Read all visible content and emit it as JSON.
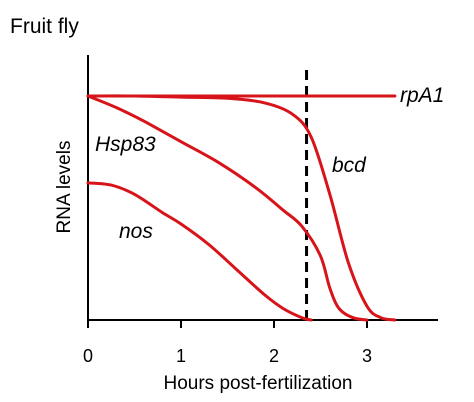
{
  "figure": {
    "title": "Fruit fly"
  },
  "chart_data": {
    "type": "line",
    "title": "Fruit fly",
    "xlabel": "Hours post-fertilization",
    "ylabel": "RNA levels",
    "xlim": [
      0,
      3.8
    ],
    "ylim": [
      0,
      1.05
    ],
    "x_ticks": [
      "0",
      "1",
      "2",
      "3"
    ],
    "x_tick_values": [
      0,
      1,
      2,
      3
    ],
    "y_ticks": [],
    "grid": false,
    "legend": "none",
    "line_color": "#d7141a",
    "marker_line": {
      "x": 2.35,
      "style": "dashed",
      "color": "#000000"
    },
    "series": [
      {
        "name": "rpA1",
        "points": [
          [
            0,
            0.98
          ],
          [
            3.3,
            0.98
          ]
        ]
      },
      {
        "name": "bcd",
        "points": [
          [
            0,
            0.98
          ],
          [
            0.5,
            0.98
          ],
          [
            1.0,
            0.975
          ],
          [
            1.5,
            0.97
          ],
          [
            1.9,
            0.95
          ],
          [
            2.2,
            0.9
          ],
          [
            2.4,
            0.8
          ],
          [
            2.6,
            0.55
          ],
          [
            2.8,
            0.25
          ],
          [
            3.0,
            0.06
          ],
          [
            3.15,
            0.01
          ],
          [
            3.3,
            0.0
          ]
        ]
      },
      {
        "name": "Hsp83",
        "points": [
          [
            0,
            0.98
          ],
          [
            0.3,
            0.93
          ],
          [
            0.6,
            0.87
          ],
          [
            1.0,
            0.78
          ],
          [
            1.4,
            0.69
          ],
          [
            1.8,
            0.58
          ],
          [
            2.1,
            0.48
          ],
          [
            2.3,
            0.41
          ],
          [
            2.5,
            0.28
          ],
          [
            2.6,
            0.14
          ],
          [
            2.7,
            0.05
          ],
          [
            2.85,
            0.01
          ],
          [
            3.0,
            0.0
          ]
        ]
      },
      {
        "name": "nos",
        "points": [
          [
            0,
            0.6
          ],
          [
            0.25,
            0.59
          ],
          [
            0.5,
            0.55
          ],
          [
            0.8,
            0.47
          ],
          [
            1.0,
            0.42
          ],
          [
            1.3,
            0.33
          ],
          [
            1.6,
            0.22
          ],
          [
            1.9,
            0.11
          ],
          [
            2.1,
            0.05
          ],
          [
            2.3,
            0.01
          ],
          [
            2.4,
            0.0
          ]
        ]
      }
    ]
  }
}
